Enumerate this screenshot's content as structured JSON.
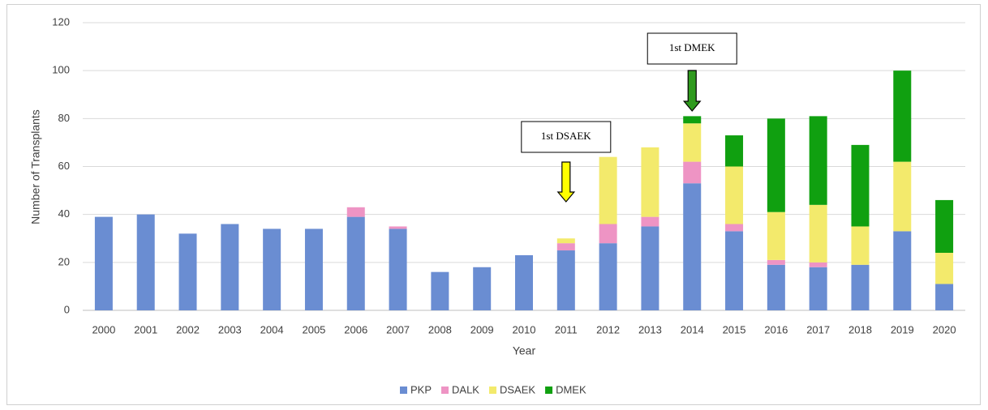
{
  "chart_data": {
    "type": "stacked_bar",
    "categories": [
      "2000",
      "2001",
      "2002",
      "2003",
      "2004",
      "2005",
      "2006",
      "2007",
      "2008",
      "2009",
      "2010",
      "2011",
      "2012",
      "2013",
      "2014",
      "2015",
      "2016",
      "2017",
      "2018",
      "2019",
      "2020"
    ],
    "series": [
      {
        "name": "PKP",
        "color": "#6a8dd2",
        "values": [
          39,
          40,
          32,
          36,
          34,
          34,
          39,
          34,
          16,
          18,
          23,
          25,
          28,
          35,
          53,
          33,
          19,
          18,
          19,
          33,
          11
        ]
      },
      {
        "name": "DALK",
        "color": "#ee94c4",
        "values": [
          0,
          0,
          0,
          0,
          0,
          0,
          4,
          1,
          0,
          0,
          0,
          3,
          8,
          4,
          9,
          3,
          2,
          2,
          0,
          0,
          0
        ]
      },
      {
        "name": "DSAEK",
        "color": "#f3ea6c",
        "values": [
          0,
          0,
          0,
          0,
          0,
          0,
          0,
          0,
          0,
          0,
          0,
          2,
          28,
          29,
          16,
          24,
          20,
          24,
          16,
          29,
          13
        ]
      },
      {
        "name": "DMEK",
        "color": "#10a010",
        "values": [
          0,
          0,
          0,
          0,
          0,
          0,
          0,
          0,
          0,
          0,
          0,
          0,
          0,
          0,
          3,
          13,
          39,
          37,
          34,
          38,
          22
        ]
      }
    ],
    "ylim": [
      0,
      120
    ],
    "yticks": [
      0,
      20,
      40,
      60,
      80,
      100,
      120
    ],
    "grid": true,
    "xlabel": "Year",
    "ylabel": "Number of Transplants",
    "legend": "bottom",
    "annotations": [
      "1st DSAEK",
      "1st DMEK"
    ]
  }
}
